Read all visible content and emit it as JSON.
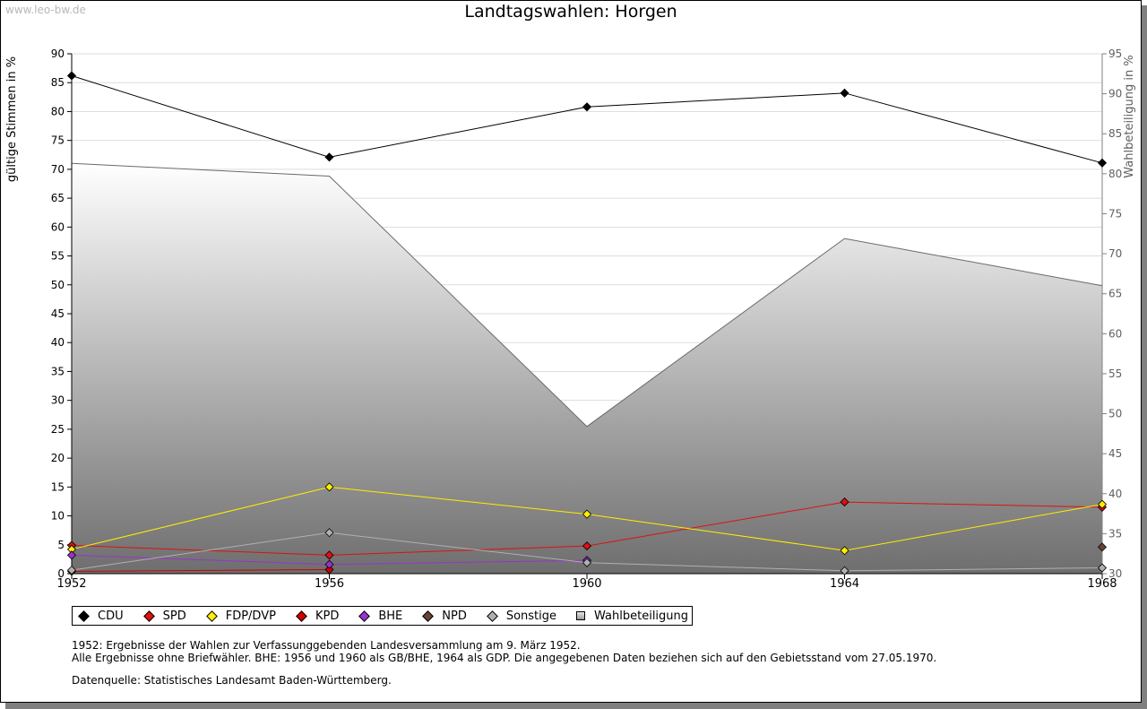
{
  "watermark": "www.leo-bw.de",
  "chart_data": {
    "type": "line",
    "title": "Landtagswahlen: Horgen",
    "xlabel": "",
    "ylabel": "gültige Stimmen in %",
    "y2label": "Wahlbeteiligung in %",
    "categories": [
      "1952",
      "1956",
      "1960",
      "1964",
      "1968"
    ],
    "ylim": [
      0,
      90
    ],
    "y_ticks": [
      0,
      5,
      10,
      15,
      20,
      25,
      30,
      35,
      40,
      45,
      50,
      55,
      60,
      65,
      70,
      75,
      80,
      85,
      90
    ],
    "y2lim": [
      30,
      95
    ],
    "y2_ticks": [
      30,
      35,
      40,
      45,
      50,
      55,
      60,
      65,
      70,
      75,
      80,
      85,
      90,
      95
    ],
    "grid": true,
    "legend_position": "bottom-left",
    "series": [
      {
        "name": "CDU",
        "color": "#000000",
        "values": [
          86.2,
          72.1,
          80.8,
          83.2,
          71.1
        ]
      },
      {
        "name": "SPD",
        "color": "#dd1111",
        "values": [
          4.9,
          3.2,
          4.8,
          12.4,
          11.5
        ]
      },
      {
        "name": "FDP/DVP",
        "color": "#ffee00",
        "values": [
          4.2,
          15.0,
          10.3,
          4.0,
          12.0
        ]
      },
      {
        "name": "KPD",
        "color": "#cc0000",
        "values": [
          0.4,
          0.7,
          null,
          null,
          null
        ]
      },
      {
        "name": "BHE",
        "color": "#9933cc",
        "values": [
          3.2,
          1.6,
          2.3,
          null,
          null
        ]
      },
      {
        "name": "NPD",
        "color": "#664433",
        "values": [
          null,
          null,
          null,
          null,
          4.6
        ]
      },
      {
        "name": "Sonstige",
        "color": "#b0b0b0",
        "values": [
          0.6,
          7.1,
          1.9,
          0.5,
          1.0
        ]
      }
    ],
    "area_series": {
      "name": "Wahlbeteiligung",
      "axis": "right",
      "values": [
        81.3,
        79.7,
        48.4,
        71.9,
        66.0
      ]
    }
  },
  "notes": [
    "1952: Ergebnisse der Wahlen zur Verfassunggebenden Landesversammlung am 9. März 1952.",
    "Alle Ergebnisse ohne Briefwähler. BHE: 1956 und 1960 als GB/BHE, 1964 als GDP. Die angegebenen Daten beziehen sich auf den Gebietsstand vom 27.05.1970."
  ],
  "source": "Datenquelle: Statistisches Landesamt Baden-Württemberg."
}
